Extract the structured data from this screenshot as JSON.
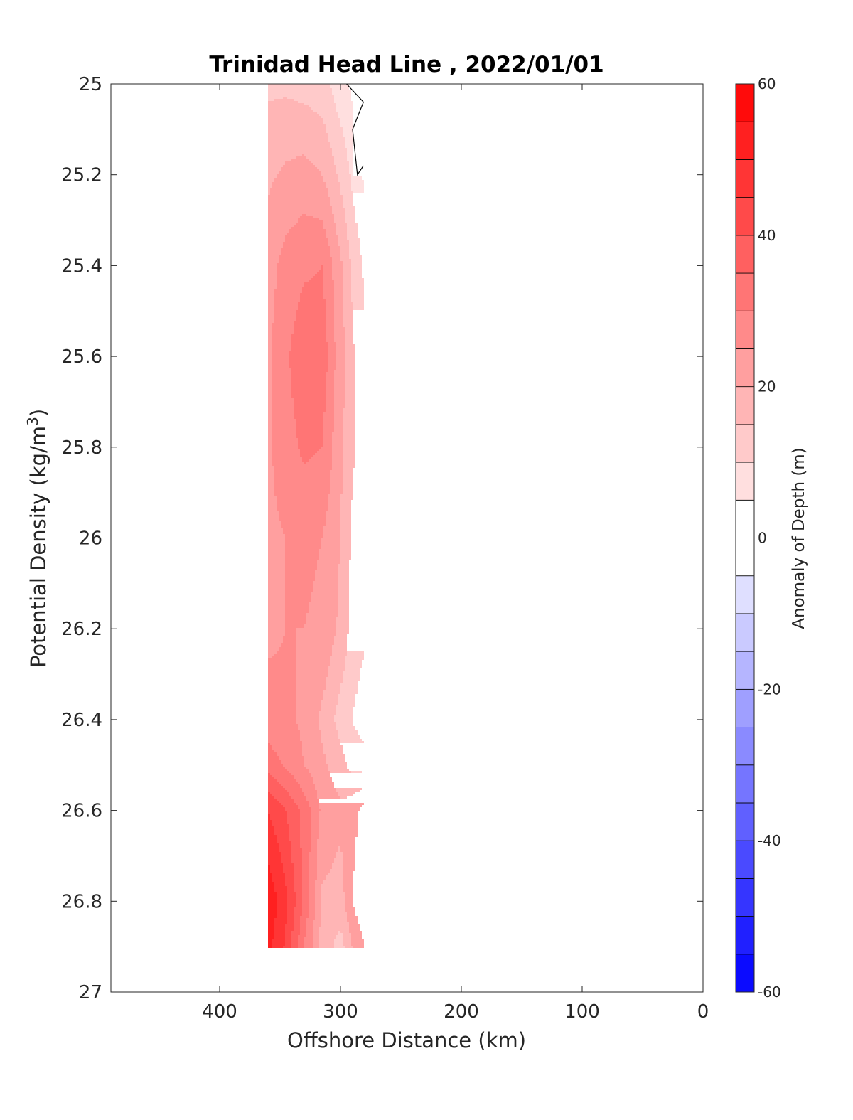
{
  "chart_data": {
    "type": "contour",
    "title": "Trinidad Head Line , 2022/01/01",
    "xlabel": "Offshore Distance (km)",
    "ylabel": "Potential Density (kg/m",
    "ylabel_superscript": "3",
    "ylabel_close": ")",
    "x_reversed": true,
    "xlim": [
      490,
      0
    ],
    "ylim": [
      25,
      27
    ],
    "y_reversed": true,
    "xticks": [
      "400",
      "300",
      "200",
      "100",
      "0"
    ],
    "xtick_values": [
      400,
      300,
      200,
      100,
      0
    ],
    "yticks": [
      "25",
      "25.2",
      "25.4",
      "25.6",
      "25.8",
      "26",
      "26.2",
      "26.4",
      "26.6",
      "26.8",
      "27"
    ],
    "ytick_values": [
      25,
      25.2,
      25.4,
      25.6,
      25.8,
      26,
      26.2,
      26.4,
      26.6,
      26.8,
      27
    ],
    "data_extent": {
      "x": [
        280,
        360
      ],
      "y": [
        25,
        26.9
      ]
    },
    "colorbar": {
      "label": "Anomaly of Depth (m)",
      "range": [
        -60,
        60
      ],
      "step": 5,
      "ticks": [
        "60",
        "40",
        "20",
        "0",
        "-20",
        "-40",
        "-60"
      ],
      "tick_values": [
        60,
        40,
        20,
        0,
        -20,
        -40,
        -60
      ],
      "neg_color": "#0000ff",
      "pos_color": "#ff0000"
    },
    "x_stations": [
      360,
      345,
      330,
      315,
      300,
      290,
      280
    ],
    "y_levels": [
      25.0,
      25.2,
      25.4,
      25.6,
      25.8,
      26.0,
      26.2,
      26.4,
      26.5,
      26.6,
      26.8,
      26.9
    ],
    "anomaly_grid": [
      [
        14,
        14,
        13,
        12,
        7,
        4,
        null
      ],
      [
        19,
        21,
        22,
        20,
        14,
        9,
        4
      ],
      [
        23,
        27,
        29,
        30,
        21,
        14,
        9
      ],
      [
        24,
        29,
        34,
        33,
        22,
        16,
        11
      ],
      [
        24,
        28,
        31,
        30,
        21,
        16,
        12
      ],
      [
        24,
        25,
        26,
        25,
        20,
        14,
        11
      ],
      [
        24,
        25,
        25,
        24,
        19,
        13,
        11
      ],
      [
        27,
        26,
        24,
        19,
        13,
        10,
        7
      ],
      [
        33,
        29,
        25,
        21,
        17,
        13,
        13
      ],
      [
        45,
        40,
        33,
        24,
        21,
        23,
        27
      ],
      [
        54,
        46,
        34,
        19,
        18,
        25,
        30
      ],
      [
        52,
        44,
        30,
        18,
        13,
        20,
        25
      ]
    ],
    "zero_contour": [
      [
        295,
        25.0
      ],
      [
        281,
        25.04
      ],
      [
        290,
        25.1
      ],
      [
        286,
        25.2
      ],
      [
        281,
        25.18
      ]
    ]
  }
}
